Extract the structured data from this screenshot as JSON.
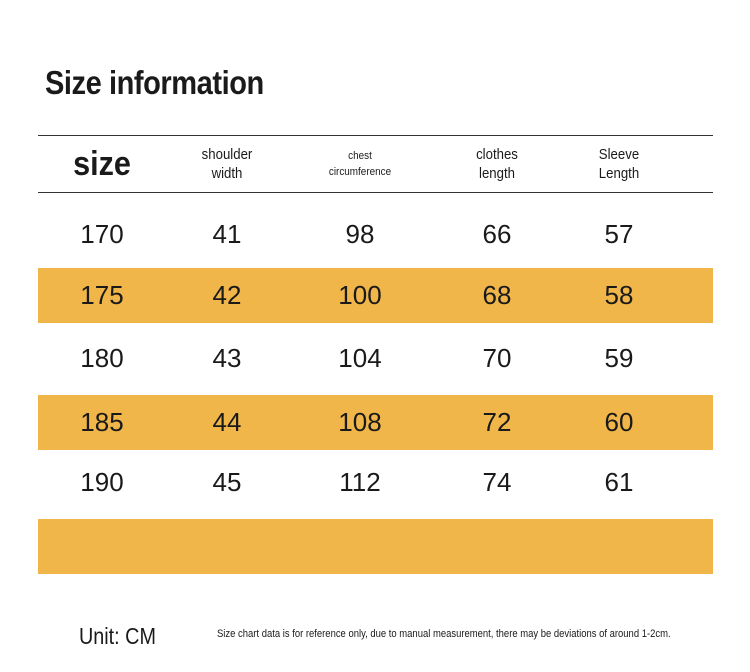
{
  "title": "Size information",
  "headers": [
    "size",
    "shoulder\nwidth",
    "chest\ncircumference",
    "clothes\nlength",
    "Sleeve\nLength"
  ],
  "rows": [
    [
      "170",
      "41",
      "98",
      "66",
      "57"
    ],
    [
      "175",
      "42",
      "100",
      "68",
      "58"
    ],
    [
      "180",
      "43",
      "104",
      "70",
      "59"
    ],
    [
      "185",
      "44",
      "108",
      "72",
      "60"
    ],
    [
      "190",
      "45",
      "112",
      "74",
      "61"
    ]
  ],
  "colors": {
    "row_highlight": "#f0b64a",
    "text": "#1a1a1a",
    "rule": "#333333"
  },
  "footer": {
    "unit": "Unit: CM",
    "note": "Size chart data is for reference only, due to manual measurement, there may be deviations of around 1-2cm."
  }
}
